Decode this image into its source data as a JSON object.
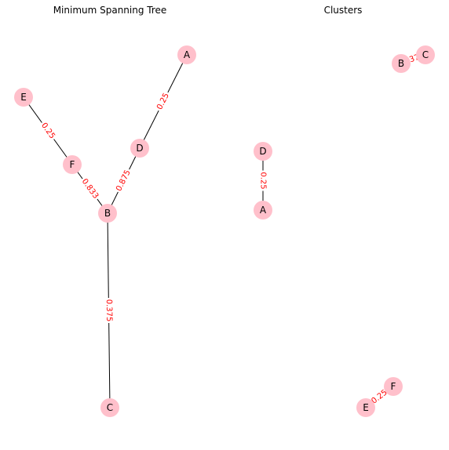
{
  "colors": {
    "node": "#ffc0cb",
    "edge": "#000000",
    "edge_label": "#ff0000",
    "background": "#ffffff"
  },
  "panels": [
    {
      "id": "mst",
      "title": "Minimum Spanning Tree",
      "nodes": [
        "A",
        "B",
        "C",
        "D",
        "E",
        "F"
      ],
      "edges": [
        {
          "source": "A",
          "target": "D",
          "weight": "0.25"
        },
        {
          "source": "D",
          "target": "B",
          "weight": "0.875"
        },
        {
          "source": "E",
          "target": "F",
          "weight": "0.25"
        },
        {
          "source": "F",
          "target": "B",
          "weight": "0.833"
        },
        {
          "source": "B",
          "target": "C",
          "weight": "0.375"
        }
      ]
    },
    {
      "id": "clusters",
      "title": "Clusters",
      "nodes": [
        "A",
        "B",
        "C",
        "D",
        "E",
        "F"
      ],
      "edges": [
        {
          "source": "B",
          "target": "C",
          "weight": "0.375"
        },
        {
          "source": "D",
          "target": "A",
          "weight": "0.25"
        },
        {
          "source": "E",
          "target": "F",
          "weight": "0.25"
        }
      ]
    }
  ]
}
